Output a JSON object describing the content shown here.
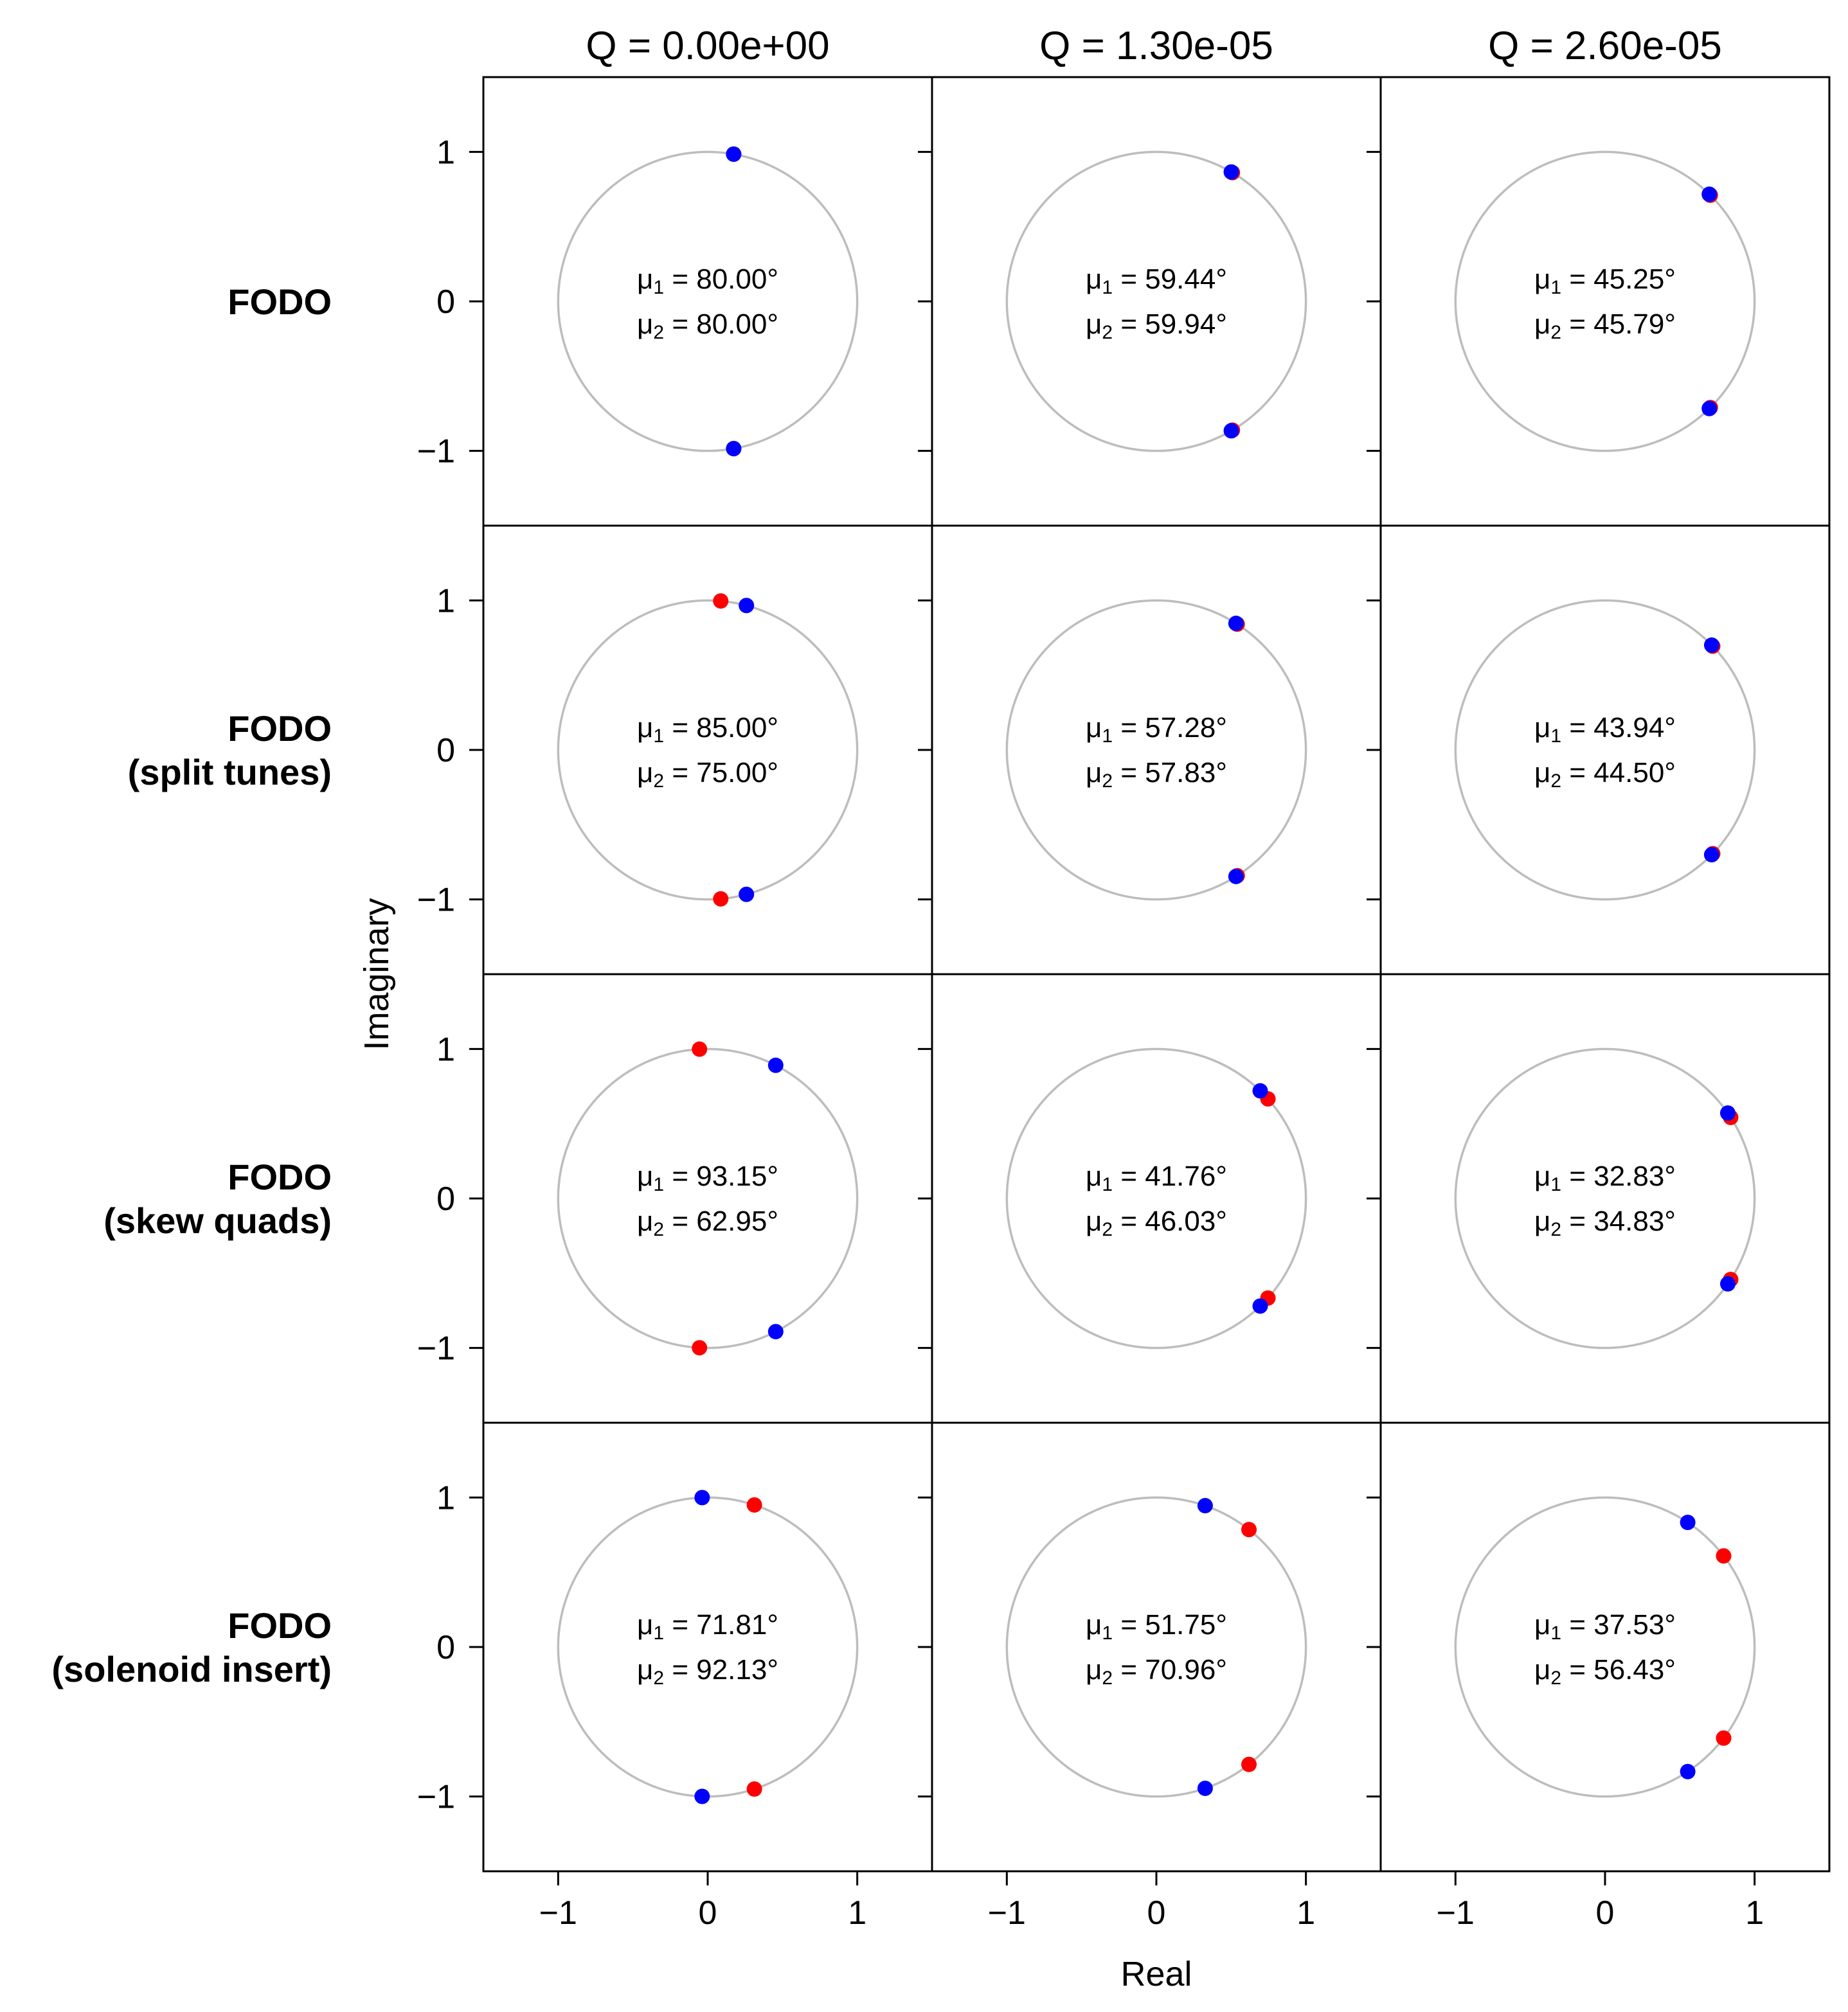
{
  "chart_data": {
    "type": "scatter",
    "description_axes": {
      "xlabel": "Real",
      "ylabel": "Imaginary"
    },
    "xlim": [
      -1.5,
      1.5
    ],
    "ylim": [
      -1.5,
      1.5
    ],
    "xticks": [
      -1,
      0,
      1
    ],
    "yticks": [
      -1,
      0,
      1
    ],
    "tick_labels": [
      "−1",
      "0",
      "1"
    ],
    "grid": false,
    "columns": [
      {
        "title": "Q = 0.00e+00"
      },
      {
        "title": "Q = 1.30e-05"
      },
      {
        "title": "Q = 2.60e-05"
      }
    ],
    "rows": [
      {
        "label_lines": [
          "FODO"
        ]
      },
      {
        "label_lines": [
          "FODO",
          "(split tunes)"
        ]
      },
      {
        "label_lines": [
          "FODO",
          "(skew quads)"
        ]
      },
      {
        "label_lines": [
          "FODO",
          "(solenoid insert)"
        ]
      }
    ],
    "series_colors": {
      "mode1": "#ff0000",
      "mode2": "#0000ff",
      "unit_circle": "#bdbdbd"
    },
    "panels": [
      [
        {
          "mu1_deg": 80.0,
          "mu2_deg": 80.0,
          "mu1_text": "80.00°",
          "mu2_text": "80.00°"
        },
        {
          "mu1_deg": 59.44,
          "mu2_deg": 59.94,
          "mu1_text": "59.44°",
          "mu2_text": "59.94°"
        },
        {
          "mu1_deg": 45.25,
          "mu2_deg": 45.79,
          "mu1_text": "45.25°",
          "mu2_text": "45.79°"
        }
      ],
      [
        {
          "mu1_deg": 85.0,
          "mu2_deg": 75.0,
          "mu1_text": "85.00°",
          "mu2_text": "75.00°"
        },
        {
          "mu1_deg": 57.28,
          "mu2_deg": 57.83,
          "mu1_text": "57.28°",
          "mu2_text": "57.83°"
        },
        {
          "mu1_deg": 43.94,
          "mu2_deg": 44.5,
          "mu1_text": "43.94°",
          "mu2_text": "44.50°"
        }
      ],
      [
        {
          "mu1_deg": 93.15,
          "mu2_deg": 62.95,
          "mu1_text": "93.15°",
          "mu2_text": "62.95°"
        },
        {
          "mu1_deg": 41.76,
          "mu2_deg": 46.03,
          "mu1_text": "41.76°",
          "mu2_text": "46.03°"
        },
        {
          "mu1_deg": 32.83,
          "mu2_deg": 34.83,
          "mu1_text": "32.83°",
          "mu2_text": "34.83°"
        }
      ],
      [
        {
          "mu1_deg": 71.81,
          "mu2_deg": 92.13,
          "mu1_text": "71.81°",
          "mu2_text": "92.13°"
        },
        {
          "mu1_deg": 51.75,
          "mu2_deg": 70.96,
          "mu1_text": "51.75°",
          "mu2_text": "70.96°"
        },
        {
          "mu1_deg": 37.53,
          "mu2_deg": 56.43,
          "mu1_text": "37.53°",
          "mu2_text": "56.43°"
        }
      ]
    ],
    "eigenvalues_note": "points at exp(±i·μ) on the unit circle: red = mode 1 (μ1), blue = mode 2 (μ2)"
  },
  "labels": {
    "mu_symbol": "μ",
    "sub1": "1",
    "sub2": "2",
    "equals": "="
  }
}
